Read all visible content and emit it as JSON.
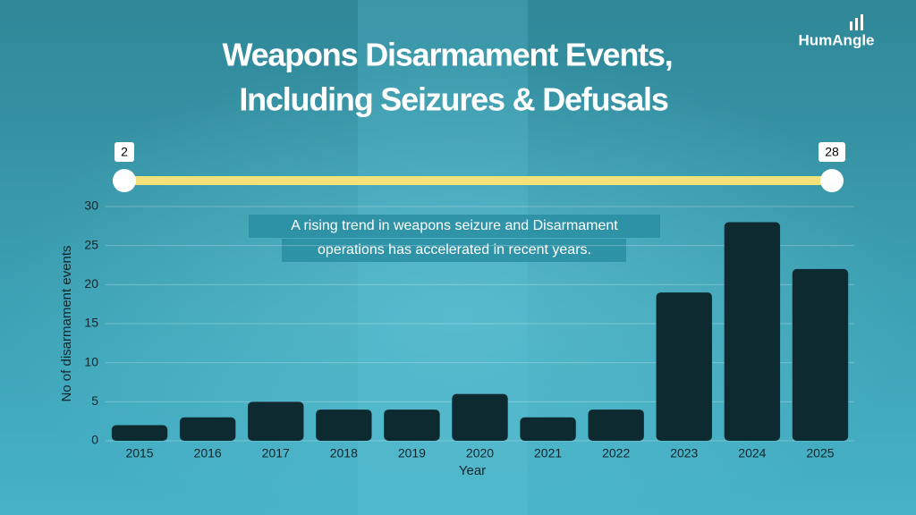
{
  "brand": "HumAngle",
  "chart_data": {
    "type": "bar",
    "title_lines": [
      "Weapons Disarmament Events,",
      "Including Seizures & Defusals"
    ],
    "slider": {
      "min": 2,
      "max": 28
    },
    "annotation_lines": [
      "A rising trend in weapons seizure and Disarmament",
      "operations has accelerated in recent years."
    ],
    "x_label": "Year",
    "y_label": "No of disarmament events",
    "categories": [
      "2015",
      "2016",
      "2017",
      "2018",
      "2019",
      "2020",
      "2021",
      "2022",
      "2023",
      "2024",
      "2025"
    ],
    "values": [
      2,
      3,
      5,
      4,
      4,
      6,
      3,
      4,
      19,
      28,
      22
    ],
    "color": "#0d2a31",
    "ylim": [
      0,
      30
    ],
    "yticks": [
      0,
      5,
      10,
      15,
      20,
      25,
      30
    ],
    "grid": true
  }
}
